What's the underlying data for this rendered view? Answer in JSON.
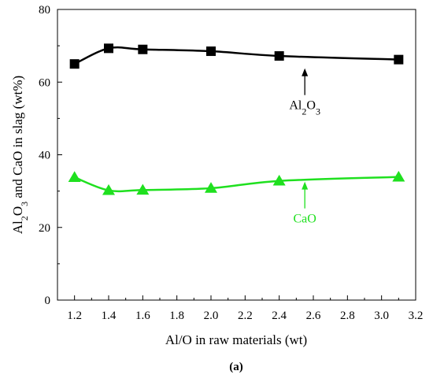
{
  "chart_data": {
    "type": "line",
    "xlabel": "Al/O in raw materials (wt)",
    "ylabel_parts": [
      "Al",
      "2",
      "O",
      "3",
      " and CaO in slag (wt%)"
    ],
    "xlim": [
      1.1,
      3.2
    ],
    "ylim": [
      0,
      80
    ],
    "xticks": [
      1.2,
      1.4,
      1.6,
      1.8,
      2.0,
      2.2,
      2.4,
      2.6,
      2.8,
      3.0,
      3.2
    ],
    "xtick_labels": [
      "1.2",
      "1.4",
      "1.6",
      "1.8",
      "2.0",
      "2.2",
      "2.4",
      "2.6",
      "2.8",
      "3.0",
      "3.2"
    ],
    "yticks": [
      0,
      20,
      40,
      60,
      80
    ],
    "ytick_labels": [
      "0",
      "20",
      "40",
      "60",
      "80"
    ],
    "grid": false,
    "series": [
      {
        "name": "Al2O3",
        "label_parts": [
          "Al",
          "2",
          "O",
          "3"
        ],
        "color": "#000000",
        "marker": "square",
        "x": [
          1.2,
          1.4,
          1.6,
          2.0,
          2.4,
          3.1
        ],
        "y": [
          65,
          69.3,
          69,
          68.5,
          67.2,
          66.2
        ],
        "annotation_tip": [
          2.55,
          63.8
        ]
      },
      {
        "name": "CaO",
        "label_parts": [
          "CaO"
        ],
        "color": "#1fe01f",
        "marker": "triangle",
        "x": [
          1.2,
          1.4,
          1.6,
          2.0,
          2.4,
          3.1
        ],
        "y": [
          33.8,
          30.2,
          30.3,
          30.8,
          32.8,
          33.9
        ],
        "annotation_tip": [
          2.55,
          32.6
        ]
      }
    ],
    "caption": "(a)"
  }
}
